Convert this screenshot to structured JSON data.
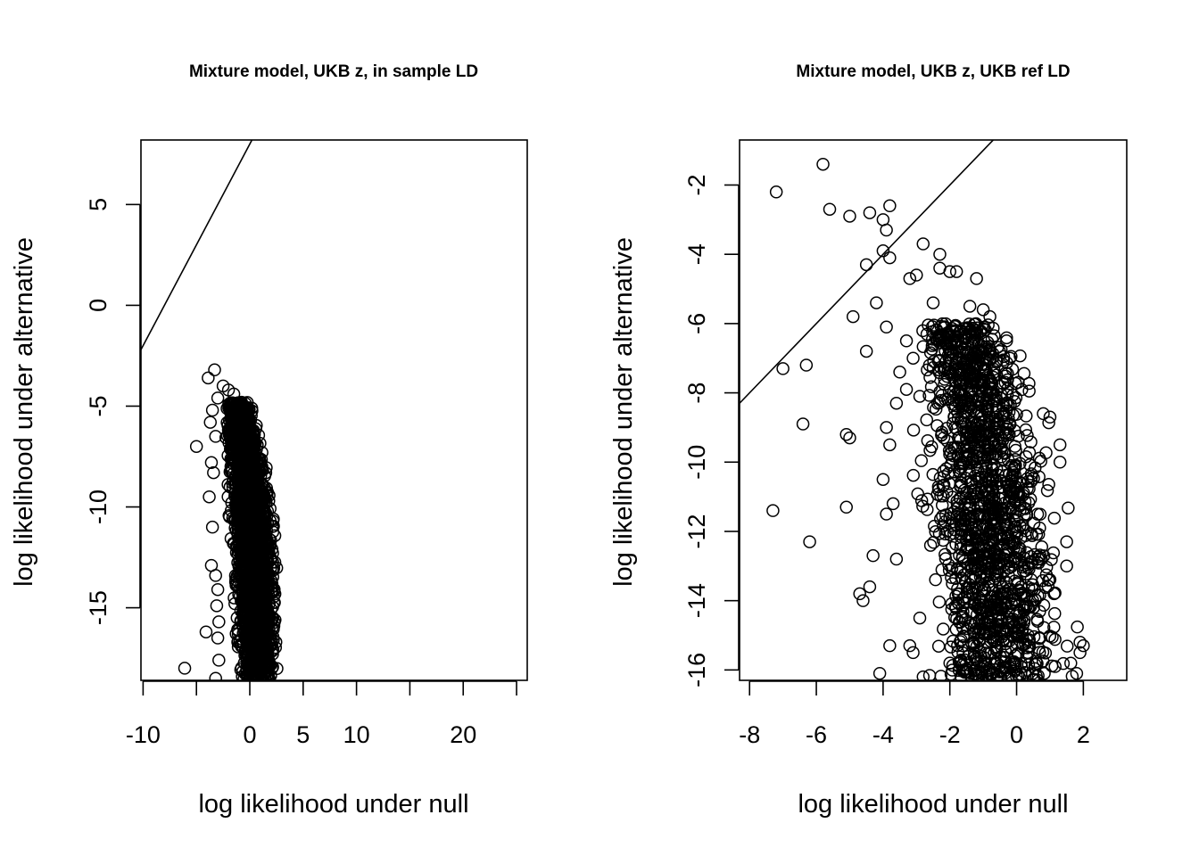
{
  "chart_data": [
    {
      "type": "scatter",
      "title": "Mixture model, UKB z, in sample LD",
      "xlabel": "log likelihood under null",
      "ylabel": "log likelihood under alternative",
      "xlim": [
        -10.2,
        26
      ],
      "ylim": [
        -18.6,
        8.2
      ],
      "xticks": [
        -10,
        -5,
        0,
        5,
        10,
        15,
        20,
        25
      ],
      "xtick_labels": [
        "-10",
        "",
        "0",
        "5",
        "10",
        "",
        "20",
        ""
      ],
      "yticks": [
        -15,
        -10,
        -5,
        0,
        5
      ],
      "ytick_labels": [
        "-15",
        "-10",
        "-5",
        "0",
        "5"
      ],
      "reference_line": {
        "intercept": 8.0,
        "slope": 1.0
      },
      "points": [
        [
          -3.3,
          -3.2
        ],
        [
          -3.9,
          -3.6
        ],
        [
          -2.5,
          -4.0
        ],
        [
          -2.0,
          -4.2
        ],
        [
          -1.5,
          -4.4
        ],
        [
          -3.0,
          -4.6
        ],
        [
          -3.5,
          -5.2
        ],
        [
          -5.0,
          -7.0
        ],
        [
          -3.7,
          -5.8
        ],
        [
          -3.2,
          -6.5
        ],
        [
          -3.6,
          -7.8
        ],
        [
          -3.4,
          -8.3
        ],
        [
          -3.8,
          -9.5
        ],
        [
          -3.5,
          -11.0
        ],
        [
          -3.6,
          -12.9
        ],
        [
          -3.2,
          -13.4
        ],
        [
          -3.0,
          -14.1
        ],
        [
          -3.1,
          -14.9
        ],
        [
          -2.9,
          -15.7
        ],
        [
          -4.1,
          -16.2
        ],
        [
          -3.0,
          -16.5
        ],
        [
          -6.1,
          -18.0
        ],
        [
          -3.2,
          -18.5
        ],
        [
          -2.9,
          -17.6
        ]
      ],
      "dense_cloud": {
        "left": [
          [
            -2.6,
            -4.8
          ],
          [
            -2.4,
            -8.0
          ],
          [
            -2.2,
            -12.0
          ],
          [
            -1.8,
            -16.0
          ],
          [
            -1.5,
            -18.6
          ]
        ],
        "right": [
          [
            0.2,
            -4.6
          ],
          [
            2.0,
            -8.0
          ],
          [
            2.8,
            -12.0
          ],
          [
            3.0,
            -16.0
          ],
          [
            3.0,
            -18.6
          ]
        ]
      }
    },
    {
      "type": "scatter",
      "title": "Mixture model, UKB z, UKB ref LD",
      "xlabel": "log likelihood under null",
      "ylabel": "log likelihood under alternative",
      "xlim": [
        -8.3,
        3.3
      ],
      "ylim": [
        -16.3,
        -0.7
      ],
      "xticks": [
        -8,
        -6,
        -4,
        -2,
        0,
        2
      ],
      "xtick_labels": [
        "-8",
        "-6",
        "-4",
        "-2",
        "0",
        "2"
      ],
      "yticks": [
        -16,
        -14,
        -12,
        -10,
        -8,
        -6,
        -4,
        -2
      ],
      "ytick_labels": [
        "-16",
        "-14",
        "-12",
        "-10",
        "-8",
        "-6",
        "-4",
        "-2"
      ],
      "reference_line": {
        "intercept": 0.0,
        "slope": 1.0
      },
      "points": [
        [
          -5.8,
          -1.4
        ],
        [
          -7.2,
          -2.2
        ],
        [
          -5.6,
          -2.7
        ],
        [
          -5.0,
          -2.9
        ],
        [
          -4.4,
          -2.8
        ],
        [
          -3.8,
          -2.6
        ],
        [
          -4.0,
          -3.0
        ],
        [
          -3.9,
          -3.3
        ],
        [
          -2.8,
          -3.7
        ],
        [
          -4.0,
          -3.9
        ],
        [
          -3.8,
          -4.1
        ],
        [
          -4.5,
          -4.3
        ],
        [
          -2.3,
          -4.0
        ],
        [
          -2.0,
          -4.5
        ],
        [
          -1.8,
          -4.5
        ],
        [
          -1.2,
          -4.7
        ],
        [
          -3.0,
          -4.6
        ],
        [
          -3.2,
          -4.7
        ],
        [
          -2.3,
          -4.4
        ],
        [
          -4.2,
          -5.4
        ],
        [
          -4.9,
          -5.8
        ],
        [
          -3.9,
          -6.1
        ],
        [
          -7.0,
          -7.3
        ],
        [
          -6.3,
          -7.2
        ],
        [
          -4.5,
          -6.8
        ],
        [
          -6.4,
          -8.9
        ],
        [
          -5.1,
          -9.2
        ],
        [
          -5.0,
          -9.3
        ],
        [
          -7.3,
          -11.4
        ],
        [
          -5.1,
          -11.3
        ],
        [
          -6.2,
          -12.3
        ],
        [
          -4.3,
          -12.7
        ],
        [
          -4.7,
          -13.8
        ],
        [
          -4.4,
          -13.6
        ],
        [
          -4.6,
          -14.0
        ],
        [
          -4.1,
          -16.1
        ],
        [
          -3.8,
          -15.3
        ],
        [
          -3.9,
          -9.0
        ],
        [
          -3.8,
          -9.5
        ],
        [
          -4.0,
          -10.5
        ],
        [
          -3.7,
          -11.2
        ],
        [
          -3.9,
          -11.5
        ],
        [
          -3.6,
          -12.8
        ],
        [
          -3.2,
          -15.3
        ],
        [
          -3.1,
          -15.5
        ],
        [
          -2.8,
          -16.2
        ],
        [
          -2.9,
          -14.5
        ],
        [
          -2.0,
          -15.8
        ],
        [
          1.9,
          -15.2
        ],
        [
          1.9,
          -15.5
        ],
        [
          1.8,
          -16.1
        ],
        [
          2.0,
          -15.3
        ],
        [
          1.5,
          -13.0
        ],
        [
          1.5,
          -12.3
        ],
        [
          1.3,
          -9.5
        ],
        [
          1.3,
          -10.0
        ],
        [
          1.0,
          -8.7
        ],
        [
          0.8,
          -8.6
        ],
        [
          -0.2,
          -7.0
        ],
        [
          -0.3,
          -6.5
        ],
        [
          -0.8,
          -5.8
        ],
        [
          -1.0,
          -5.6
        ],
        [
          -1.4,
          -5.5
        ],
        [
          -2.5,
          -5.4
        ],
        [
          -3.3,
          -6.5
        ],
        [
          -3.1,
          -7.0
        ],
        [
          -3.5,
          -7.4
        ],
        [
          -3.3,
          -7.9
        ],
        [
          -3.6,
          -8.3
        ],
        [
          -2.9,
          -8.1
        ]
      ],
      "dense_cloud": {
        "left": [
          [
            -3.3,
            -6.0
          ],
          [
            -3.2,
            -8.5
          ],
          [
            -3.3,
            -11.0
          ],
          [
            -3.1,
            -13.0
          ],
          [
            -3.0,
            -16.3
          ]
        ],
        "right": [
          [
            -0.2,
            -6.0
          ],
          [
            1.2,
            -8.5
          ],
          [
            1.6,
            -11.0
          ],
          [
            1.8,
            -13.0
          ],
          [
            2.0,
            -16.3
          ]
        ]
      }
    }
  ]
}
